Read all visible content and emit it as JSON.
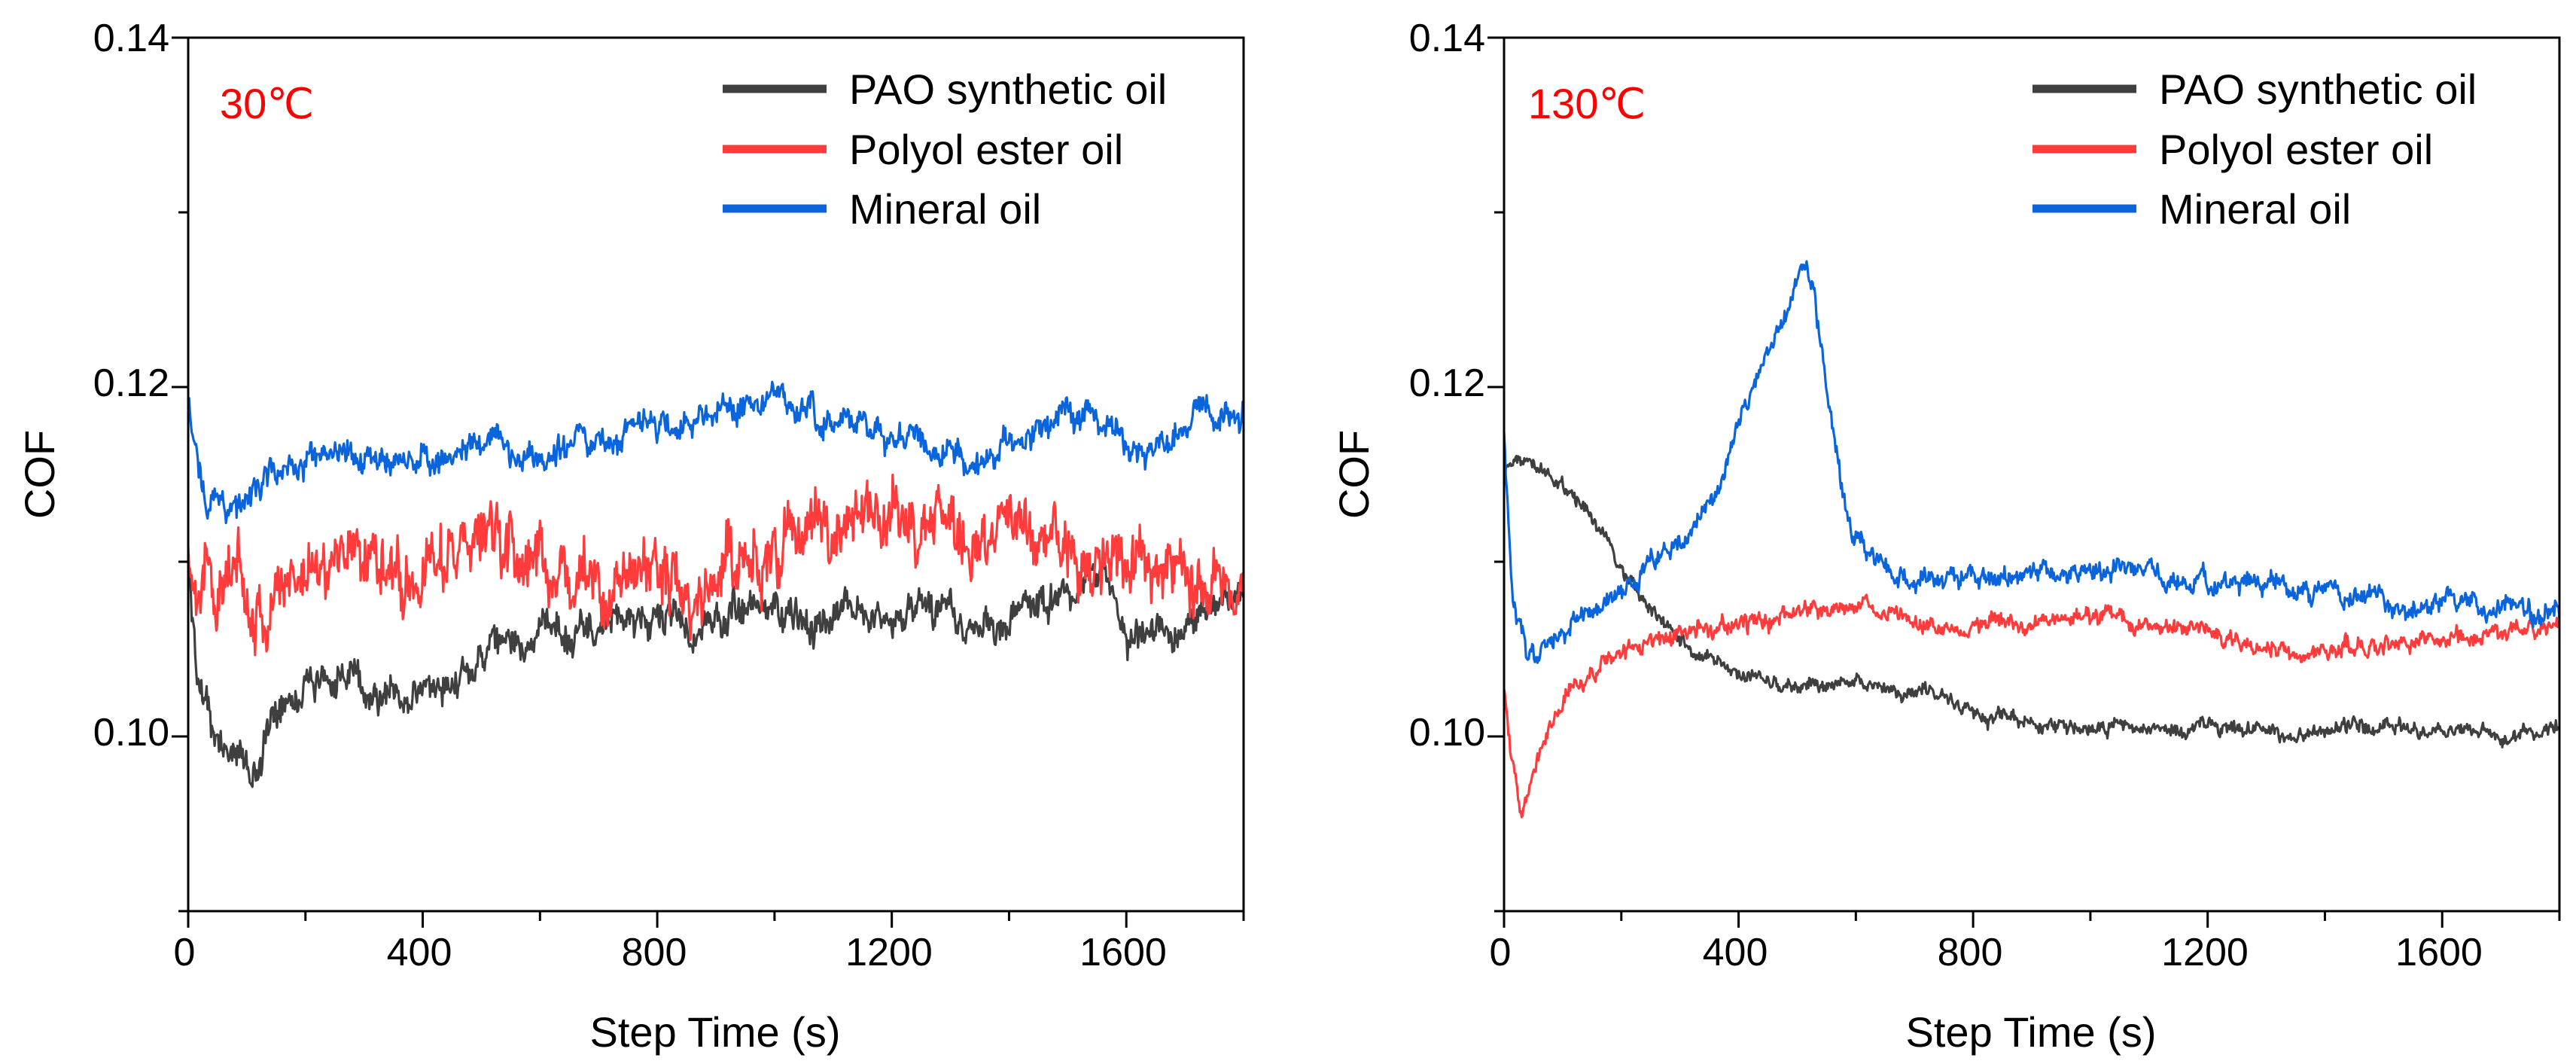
{
  "chart_data": [
    {
      "type": "line",
      "panel_label": "30℃",
      "xlabel": "Step Time (s)",
      "ylabel": "COF",
      "xlim": [
        0,
        1800
      ],
      "ylim": [
        0.09,
        0.14
      ],
      "xticks": [
        0,
        400,
        800,
        1200,
        1600
      ],
      "xtick_labels": [
        "0",
        "400",
        "800",
        "1200",
        "1600"
      ],
      "yticks": [
        0.1,
        0.12,
        0.14
      ],
      "ytick_labels": [
        "0.10",
        "0.12",
        "0.14"
      ],
      "legend_position": "top-right",
      "series": [
        {
          "name": "PAO synthetic oil",
          "color": "#3f3f3f",
          "noise": 0.0012,
          "points": [
            [
              0,
              0.1095
            ],
            [
              15,
              0.104
            ],
            [
              40,
              0.1005
            ],
            [
              80,
              0.099
            ],
            [
              110,
              0.0978
            ],
            [
              135,
              0.1
            ],
            [
              160,
              0.1025
            ],
            [
              200,
              0.103
            ],
            [
              260,
              0.1035
            ],
            [
              330,
              0.1025
            ],
            [
              380,
              0.1022
            ],
            [
              430,
              0.103
            ],
            [
              480,
              0.104
            ],
            [
              540,
              0.105
            ],
            [
              600,
              0.106
            ],
            [
              660,
              0.106
            ],
            [
              720,
              0.1065
            ],
            [
              800,
              0.1068
            ],
            [
              860,
              0.1058
            ],
            [
              930,
              0.107
            ],
            [
              1000,
              0.1072
            ],
            [
              1080,
              0.1068
            ],
            [
              1150,
              0.1075
            ],
            [
              1230,
              0.107
            ],
            [
              1300,
              0.1068
            ],
            [
              1380,
              0.1063
            ],
            [
              1450,
              0.1075
            ],
            [
              1520,
              0.1085
            ],
            [
              1560,
              0.109
            ],
            [
              1600,
              0.105
            ],
            [
              1660,
              0.106
            ],
            [
              1720,
              0.1063
            ],
            [
              1760,
              0.1075
            ],
            [
              1800,
              0.1085
            ]
          ]
        },
        {
          "name": "Polyol ester oil",
          "color": "#ff3b3b",
          "noise": 0.0022,
          "points": [
            [
              0,
              0.1102
            ],
            [
              50,
              0.1085
            ],
            [
              100,
              0.109
            ],
            [
              135,
              0.1065
            ],
            [
              170,
              0.1095
            ],
            [
              220,
              0.11
            ],
            [
              280,
              0.111
            ],
            [
              340,
              0.1095
            ],
            [
              420,
              0.11
            ],
            [
              500,
              0.111
            ],
            [
              560,
              0.111
            ],
            [
              610,
              0.1095
            ],
            [
              680,
              0.1085
            ],
            [
              740,
              0.1085
            ],
            [
              800,
              0.11
            ],
            [
              860,
              0.1075
            ],
            [
              920,
              0.11
            ],
            [
              980,
              0.11
            ],
            [
              1040,
              0.1115
            ],
            [
              1100,
              0.112
            ],
            [
              1160,
              0.113
            ],
            [
              1230,
              0.112
            ],
            [
              1280,
              0.112
            ],
            [
              1340,
              0.1105
            ],
            [
              1400,
              0.1115
            ],
            [
              1470,
              0.1115
            ],
            [
              1530,
              0.11
            ],
            [
              1600,
              0.1095
            ],
            [
              1680,
              0.11
            ],
            [
              1750,
              0.109
            ],
            [
              1800,
              0.109
            ]
          ]
        },
        {
          "name": "Mineral oil",
          "color": "#0a64dc",
          "noise": 0.001,
          "points": [
            [
              0,
              0.1195
            ],
            [
              8,
              0.1165
            ],
            [
              30,
              0.114
            ],
            [
              80,
              0.113
            ],
            [
              140,
              0.1148
            ],
            [
              200,
              0.1155
            ],
            [
              300,
              0.116
            ],
            [
              400,
              0.116
            ],
            [
              460,
              0.1162
            ],
            [
              520,
              0.1175
            ],
            [
              560,
              0.1155
            ],
            [
              620,
              0.1165
            ],
            [
              700,
              0.117
            ],
            [
              780,
              0.1178
            ],
            [
              860,
              0.1182
            ],
            [
              940,
              0.1188
            ],
            [
              1010,
              0.1195
            ],
            [
              1080,
              0.1182
            ],
            [
              1160,
              0.1178
            ],
            [
              1230,
              0.1168
            ],
            [
              1300,
              0.1165
            ],
            [
              1340,
              0.1155
            ],
            [
              1400,
              0.1168
            ],
            [
              1460,
              0.1178
            ],
            [
              1530,
              0.1185
            ],
            [
              1580,
              0.1175
            ],
            [
              1620,
              0.116
            ],
            [
              1680,
              0.1175
            ],
            [
              1740,
              0.118
            ],
            [
              1800,
              0.1185
            ]
          ]
        }
      ]
    },
    {
      "type": "line",
      "panel_label": "130℃",
      "xlabel": "Step Time (s)",
      "ylabel": "COF",
      "xlim": [
        0,
        1800
      ],
      "ylim": [
        0.09,
        0.14
      ],
      "xticks": [
        0,
        400,
        800,
        1200,
        1600
      ],
      "xtick_labels": [
        "0",
        "400",
        "800",
        "1200",
        "1600"
      ],
      "yticks": [
        0.1,
        0.12,
        0.14
      ],
      "ytick_labels": [
        "0.10",
        "0.12",
        "0.14"
      ],
      "legend_position": "top-right",
      "series": [
        {
          "name": "PAO synthetic oil",
          "color": "#3f3f3f",
          "noise": 0.0005,
          "points": [
            [
              0,
              0.115
            ],
            [
              20,
              0.1162
            ],
            [
              60,
              0.1155
            ],
            [
              100,
              0.1145
            ],
            [
              160,
              0.112
            ],
            [
              220,
              0.1085
            ],
            [
              280,
              0.106
            ],
            [
              340,
              0.1045
            ],
            [
              400,
              0.1035
            ],
            [
              460,
              0.103
            ],
            [
              520,
              0.103
            ],
            [
              600,
              0.103
            ],
            [
              700,
              0.1025
            ],
            [
              800,
              0.1015
            ],
            [
              880,
              0.1008
            ],
            [
              960,
              0.1005
            ],
            [
              1050,
              0.1005
            ],
            [
              1150,
              0.1003
            ],
            [
              1250,
              0.1005
            ],
            [
              1350,
              0.1002
            ],
            [
              1450,
              0.1004
            ],
            [
              1550,
              0.1003
            ],
            [
              1650,
              0.1002
            ],
            [
              1740,
              0.1
            ],
            [
              1800,
              0.1005
            ]
          ]
        },
        {
          "name": "Polyol ester oil",
          "color": "#ff3b3b",
          "noise": 0.0006,
          "points": [
            [
              0,
              0.103
            ],
            [
              12,
              0.0985
            ],
            [
              30,
              0.096
            ],
            [
              50,
              0.0985
            ],
            [
              80,
              0.101
            ],
            [
              120,
              0.103
            ],
            [
              180,
              0.1045
            ],
            [
              260,
              0.1055
            ],
            [
              340,
              0.106
            ],
            [
              420,
              0.1065
            ],
            [
              500,
              0.107
            ],
            [
              580,
              0.1072
            ],
            [
              620,
              0.1075
            ],
            [
              700,
              0.1065
            ],
            [
              800,
              0.1065
            ],
            [
              900,
              0.1063
            ],
            [
              1000,
              0.1068
            ],
            [
              1100,
              0.1065
            ],
            [
              1200,
              0.106
            ],
            [
              1300,
              0.105
            ],
            [
              1380,
              0.1045
            ],
            [
              1450,
              0.1052
            ],
            [
              1550,
              0.1055
            ],
            [
              1650,
              0.1058
            ],
            [
              1750,
              0.106
            ],
            [
              1800,
              0.1062
            ]
          ]
        },
        {
          "name": "Mineral oil",
          "color": "#0a64dc",
          "noise": 0.0007,
          "points": [
            [
              0,
              0.1175
            ],
            [
              15,
              0.108
            ],
            [
              40,
              0.1045
            ],
            [
              90,
              0.1055
            ],
            [
              150,
              0.107
            ],
            [
              220,
              0.109
            ],
            [
              300,
              0.111
            ],
            [
              360,
              0.114
            ],
            [
              410,
              0.1185
            ],
            [
              450,
              0.1215
            ],
            [
              480,
              0.124
            ],
            [
              510,
              0.127
            ],
            [
              530,
              0.125
            ],
            [
              560,
              0.118
            ],
            [
              590,
              0.112
            ],
            [
              620,
              0.1105
            ],
            [
              640,
              0.11
            ],
            [
              700,
              0.109
            ],
            [
              800,
              0.109
            ],
            [
              900,
              0.1093
            ],
            [
              1000,
              0.1095
            ],
            [
              1100,
              0.1095
            ],
            [
              1140,
              0.109
            ],
            [
              1200,
              0.109
            ],
            [
              1300,
              0.1088
            ],
            [
              1400,
              0.1083
            ],
            [
              1500,
              0.1078
            ],
            [
              1600,
              0.1075
            ],
            [
              1700,
              0.1075
            ],
            [
              1800,
              0.107
            ]
          ]
        }
      ]
    }
  ]
}
